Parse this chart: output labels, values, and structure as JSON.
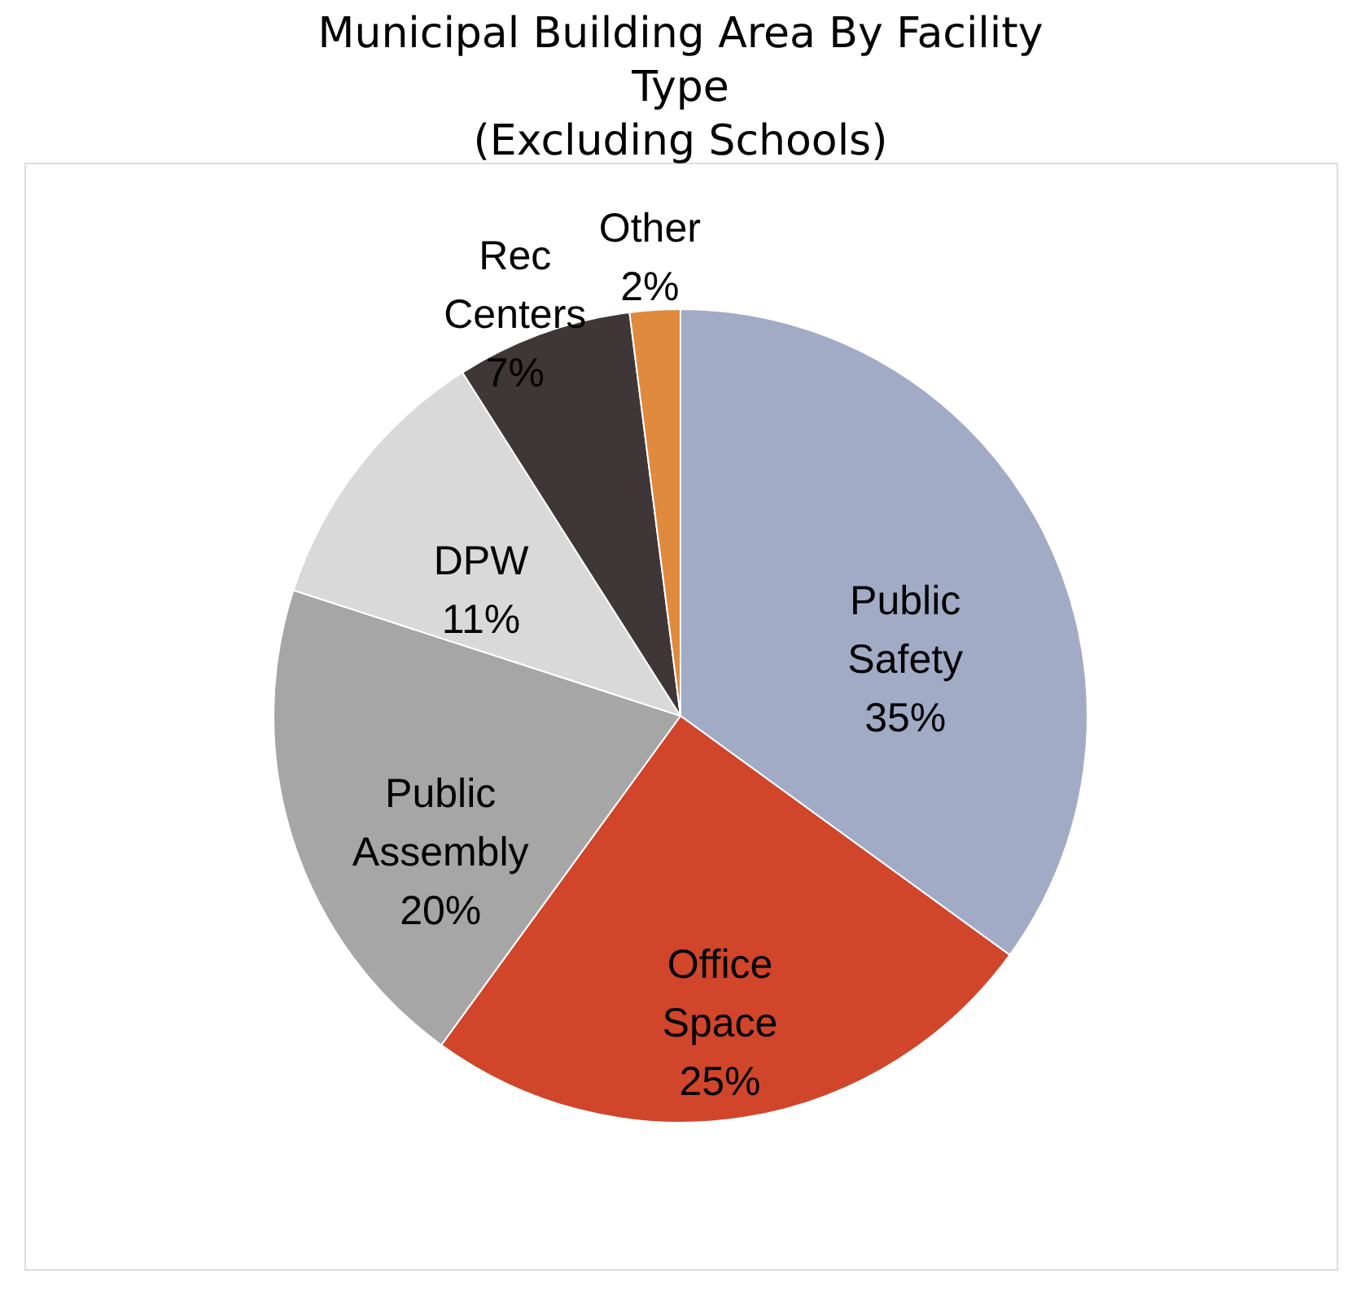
{
  "chart_data": {
    "type": "pie",
    "title": "Municipal Building Area By Facility Type (Excluding Schools)",
    "categories": [
      "Public Safety",
      "Office Space",
      "Public Assembly",
      "DPW",
      "Rec Centers",
      "Other"
    ],
    "values": [
      35,
      25,
      20,
      11,
      7,
      2
    ],
    "value_labels": [
      "35%",
      "25%",
      "20%",
      "11%",
      "7%",
      "2%"
    ],
    "colors": [
      "#a2abc6",
      "#d1452b",
      "#a6a6a6",
      "#d9d9d9",
      "#3f3637",
      "#e08a3e"
    ],
    "legend": false
  }
}
